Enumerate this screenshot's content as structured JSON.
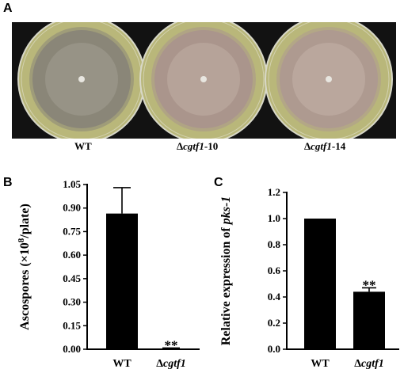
{
  "panels": {
    "a": "A",
    "b": "B",
    "c": "C"
  },
  "photo": {
    "plates": [
      {
        "prefix": "",
        "italic": "",
        "suffix": "WT",
        "colony": "#8a8678",
        "center": "#b0aba0"
      },
      {
        "prefix": "Δ",
        "italic": "cgtf1",
        "suffix": "-10",
        "colony": "#aa958c",
        "center": "#cdbdb2"
      },
      {
        "prefix": "Δ",
        "italic": "cgtf1",
        "suffix": "-14",
        "colony": "#ae9a90",
        "center": "#d0c1b8"
      }
    ],
    "agar_color": "#b9b77a",
    "background_color": "#121212"
  },
  "chart_data": [
    {
      "type": "bar",
      "panel": "B",
      "categories": [
        "WT",
        "Δcgtf1"
      ],
      "category_labels": [
        {
          "prefix": "WT",
          "italic": ""
        },
        {
          "prefix": "Δ",
          "italic": "cgtf1"
        }
      ],
      "values": [
        0.865,
        0.005
      ],
      "errors": [
        0.165,
        0.003
      ],
      "annotations": [
        "",
        "**"
      ],
      "ylabel_prefix": "Ascospores (×10",
      "ylabel_sup": "8",
      "ylabel_suffix": "/plate)",
      "ylim": [
        0,
        1.05
      ],
      "yticks": [
        "0.00",
        "0.15",
        "0.30",
        "0.45",
        "0.60",
        "0.75",
        "0.90",
        "1.05"
      ],
      "bar_color": "#000000"
    },
    {
      "type": "bar",
      "panel": "C",
      "categories": [
        "WT",
        "Δcgtf1"
      ],
      "category_labels": [
        {
          "prefix": "WT",
          "italic": ""
        },
        {
          "prefix": "Δ",
          "italic": "cgtf1"
        }
      ],
      "values": [
        1.0,
        0.44
      ],
      "errors": [
        0,
        0.03
      ],
      "annotations": [
        "",
        "**"
      ],
      "ylabel_prefix": "Relative expression of ",
      "ylabel_italic": "pks-1",
      "ylim": [
        0,
        1.2
      ],
      "yticks": [
        "0.0",
        "0.2",
        "0.4",
        "0.6",
        "0.8",
        "1.0",
        "1.2"
      ],
      "bar_color": "#000000"
    }
  ]
}
